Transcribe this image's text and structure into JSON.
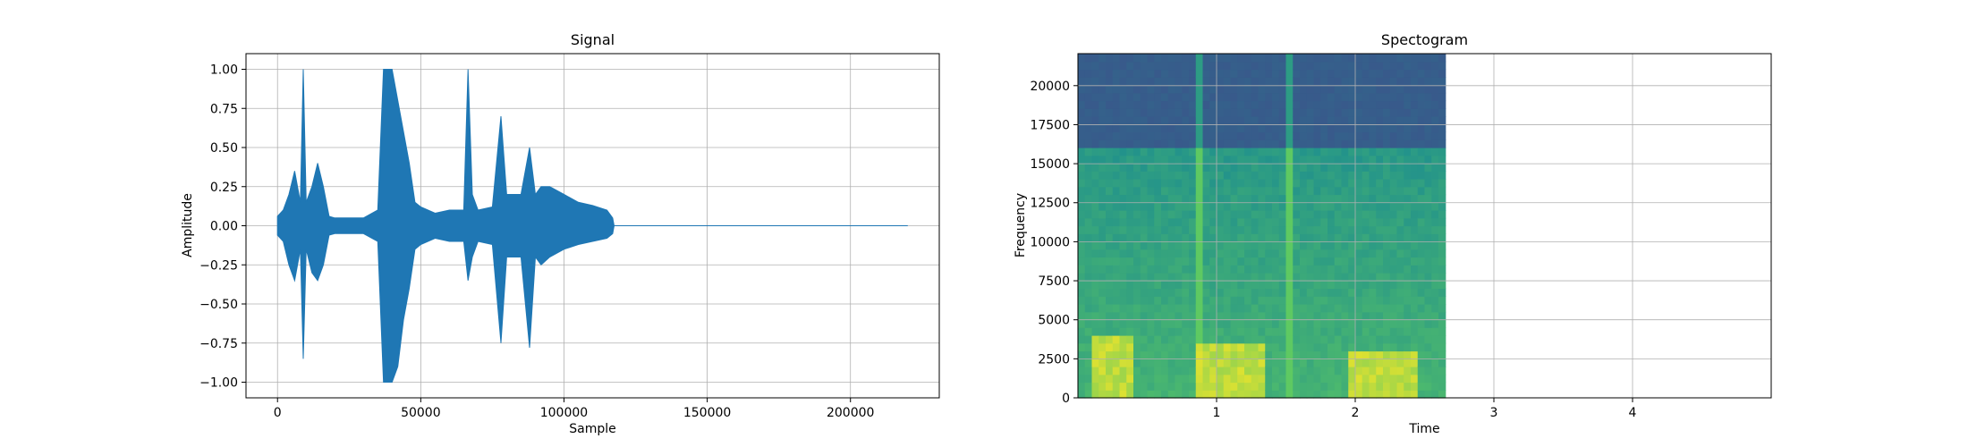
{
  "chart_data": [
    {
      "type": "line",
      "title": "Signal",
      "xlabel": "Sample",
      "ylabel": "Amplitude",
      "xlim": [
        -11000,
        231000
      ],
      "ylim": [
        -1.1,
        1.1
      ],
      "grid": true,
      "line_color": "#1f77b4",
      "x_ticks": [
        {
          "value": 0,
          "label": "0"
        },
        {
          "value": 50000,
          "label": "50000"
        },
        {
          "value": 100000,
          "label": "100000"
        },
        {
          "value": 150000,
          "label": "150000"
        },
        {
          "value": 200000,
          "label": "200000"
        }
      ],
      "y_ticks": [
        {
          "value": 1.0,
          "label": "1.00"
        },
        {
          "value": 0.75,
          "label": "0.75"
        },
        {
          "value": 0.5,
          "label": "0.50"
        },
        {
          "value": 0.25,
          "label": "0.25"
        },
        {
          "value": 0.0,
          "label": "0.00"
        },
        {
          "value": -0.25,
          "label": "−0.25"
        },
        {
          "value": -0.5,
          "label": "−0.50"
        },
        {
          "value": -0.75,
          "label": "−0.75"
        },
        {
          "value": -1.0,
          "label": "−1.00"
        }
      ],
      "envelope": {
        "x": [
          0,
          2000,
          4000,
          6000,
          8000,
          9000,
          10000,
          12000,
          14000,
          16000,
          18000,
          20000,
          25000,
          30000,
          35000,
          37000,
          38000,
          40000,
          42000,
          44000,
          46000,
          48000,
          50000,
          55000,
          60000,
          65000,
          66500,
          68000,
          70000,
          75000,
          78000,
          80000,
          85000,
          88000,
          90000,
          92000,
          95000,
          100000,
          105000,
          110000,
          115000,
          117000,
          117500,
          220000
        ],
        "max": [
          0.06,
          0.1,
          0.2,
          0.35,
          0.15,
          1.0,
          0.15,
          0.25,
          0.4,
          0.25,
          0.06,
          0.05,
          0.05,
          0.05,
          0.1,
          1.0,
          1.0,
          1.0,
          0.8,
          0.6,
          0.4,
          0.15,
          0.12,
          0.08,
          0.1,
          0.1,
          1.0,
          0.2,
          0.1,
          0.12,
          0.7,
          0.2,
          0.2,
          0.5,
          0.2,
          0.25,
          0.25,
          0.2,
          0.15,
          0.13,
          0.1,
          0.05,
          0.0,
          0.0
        ],
        "min": [
          -0.06,
          -0.1,
          -0.25,
          -0.35,
          -0.15,
          -0.85,
          -0.15,
          -0.3,
          -0.35,
          -0.25,
          -0.06,
          -0.05,
          -0.05,
          -0.05,
          -0.1,
          -1.0,
          -1.0,
          -1.0,
          -0.9,
          -0.6,
          -0.4,
          -0.15,
          -0.12,
          -0.08,
          -0.1,
          -0.1,
          -0.35,
          -0.2,
          -0.1,
          -0.12,
          -0.75,
          -0.2,
          -0.2,
          -0.78,
          -0.2,
          -0.25,
          -0.2,
          -0.15,
          -0.12,
          -0.1,
          -0.08,
          -0.05,
          0.0,
          0.0
        ]
      }
    },
    {
      "type": "heatmap",
      "title": "Spectogram",
      "xlabel": "Time",
      "ylabel": "Frequency",
      "xlim": [
        0.0,
        5.0
      ],
      "ylim": [
        0,
        22050
      ],
      "grid": true,
      "x_ticks": [
        {
          "value": 1,
          "label": "1"
        },
        {
          "value": 2,
          "label": "2"
        },
        {
          "value": 3,
          "label": "3"
        },
        {
          "value": 4,
          "label": "4"
        }
      ],
      "y_ticks": [
        {
          "value": 0,
          "label": "0"
        },
        {
          "value": 2500,
          "label": "2500"
        },
        {
          "value": 5000,
          "label": "5000"
        },
        {
          "value": 7500,
          "label": "7500"
        },
        {
          "value": 10000,
          "label": "10000"
        },
        {
          "value": 12500,
          "label": "12500"
        },
        {
          "value": 15000,
          "label": "15000"
        },
        {
          "value": 17500,
          "label": "17500"
        },
        {
          "value": 20000,
          "label": "20000"
        }
      ],
      "data_end_time": 2.65,
      "colormap": [
        "#440154",
        "#3b528b",
        "#21918c",
        "#5ec962",
        "#fde725"
      ],
      "time_bins": 53,
      "freq_bins": 44,
      "cutoff_frequency": 16200,
      "high_band_level": 0.28,
      "loud_bursts": [
        {
          "start": 0.85,
          "end": 0.92
        },
        {
          "start": 1.49,
          "end": 1.53
        }
      ],
      "energy_regions": [
        {
          "start": 0.85,
          "end": 1.35,
          "max_frequency": 3500
        },
        {
          "start": 1.95,
          "end": 2.45,
          "max_frequency": 3000
        },
        {
          "start": 0.1,
          "end": 0.4,
          "max_frequency": 4000
        }
      ]
    }
  ]
}
